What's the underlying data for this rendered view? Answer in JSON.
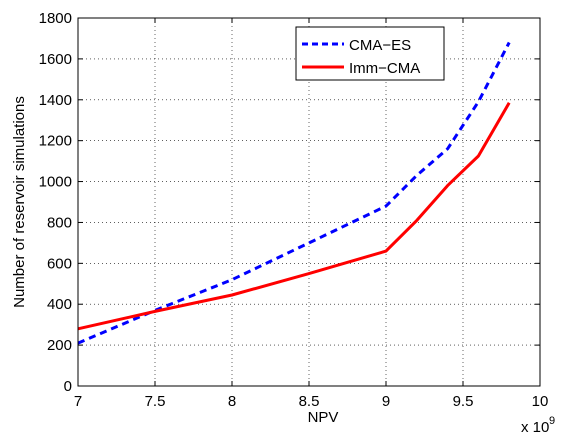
{
  "chart_data": {
    "type": "line",
    "xlabel": "NPV",
    "ylabel": "Number of reservoir simulations",
    "x_exponent_label": "x 10",
    "x_exponent_power": "9",
    "xlim": [
      7,
      10
    ],
    "ylim": [
      0,
      1800
    ],
    "xticks": [
      7,
      7.5,
      8,
      8.5,
      9,
      9.5,
      10
    ],
    "xtick_labels": [
      "7",
      "7.5",
      "8",
      "8.5",
      "9",
      "9.5",
      "10"
    ],
    "yticks": [
      0,
      200,
      400,
      600,
      800,
      1000,
      1200,
      1400,
      1600,
      1800
    ],
    "ytick_labels": [
      "0",
      "200",
      "400",
      "600",
      "800",
      "1000",
      "1200",
      "1400",
      "1600",
      "1800"
    ],
    "grid": true,
    "legend_position": "top-right",
    "series": [
      {
        "name": "CMA−ES",
        "color": "#0000ff",
        "style": "dashed",
        "x": [
          7,
          7.5,
          8,
          8.5,
          9,
          9.2,
          9.4,
          9.6,
          9.8
        ],
        "y": [
          210,
          370,
          520,
          700,
          880,
          1030,
          1160,
          1390,
          1680
        ]
      },
      {
        "name": "Imm−CMA",
        "color": "#ff0000",
        "style": "solid",
        "x": [
          7,
          7.5,
          8,
          8.5,
          9,
          9.2,
          9.4,
          9.6,
          9.8
        ],
        "y": [
          280,
          365,
          445,
          550,
          660,
          810,
          980,
          1125,
          1385
        ]
      }
    ]
  }
}
